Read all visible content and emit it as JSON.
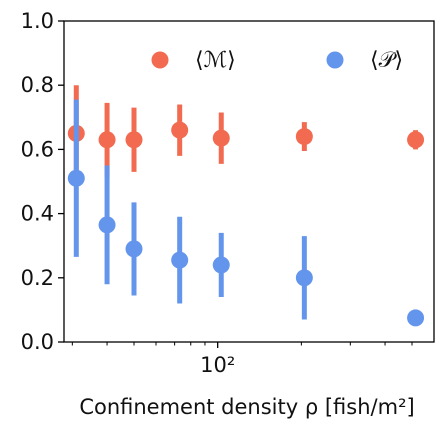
{
  "chart_data": {
    "type": "scatter",
    "title": "",
    "xlabel": "Confinement density ρ [fish/m²]",
    "ylabel": "",
    "xscale": "log",
    "xlim": [
      28,
      600
    ],
    "ylim": [
      0,
      1.0
    ],
    "yticks": [
      0.0,
      0.2,
      0.4,
      0.6,
      0.8,
      1.0
    ],
    "ytick_labels": [
      "0.0",
      "0.2",
      "0.4",
      "0.6",
      "0.8",
      "1.0"
    ],
    "xticks": [
      100
    ],
    "xtick_labels": [
      "10²"
    ],
    "legend": {
      "position": "top"
    },
    "series": [
      {
        "name": "⟨ℳ⟩",
        "color": "#f26b50",
        "x": [
          31,
          40,
          50,
          73,
          103,
          205,
          515
        ],
        "y": [
          0.65,
          0.63,
          0.63,
          0.66,
          0.635,
          0.64,
          0.63
        ],
        "err": [
          0.15,
          0.115,
          0.1,
          0.08,
          0.08,
          0.045,
          0.03
        ]
      },
      {
        "name": "⟨𝒫⟩",
        "color": "#6495ed",
        "x": [
          31,
          40,
          50,
          73,
          103,
          205,
          515
        ],
        "y": [
          0.51,
          0.365,
          0.29,
          0.255,
          0.24,
          0.2,
          0.075
        ],
        "err": [
          0.245,
          0.185,
          0.145,
          0.135,
          0.1,
          0.13,
          0.025
        ]
      }
    ]
  }
}
